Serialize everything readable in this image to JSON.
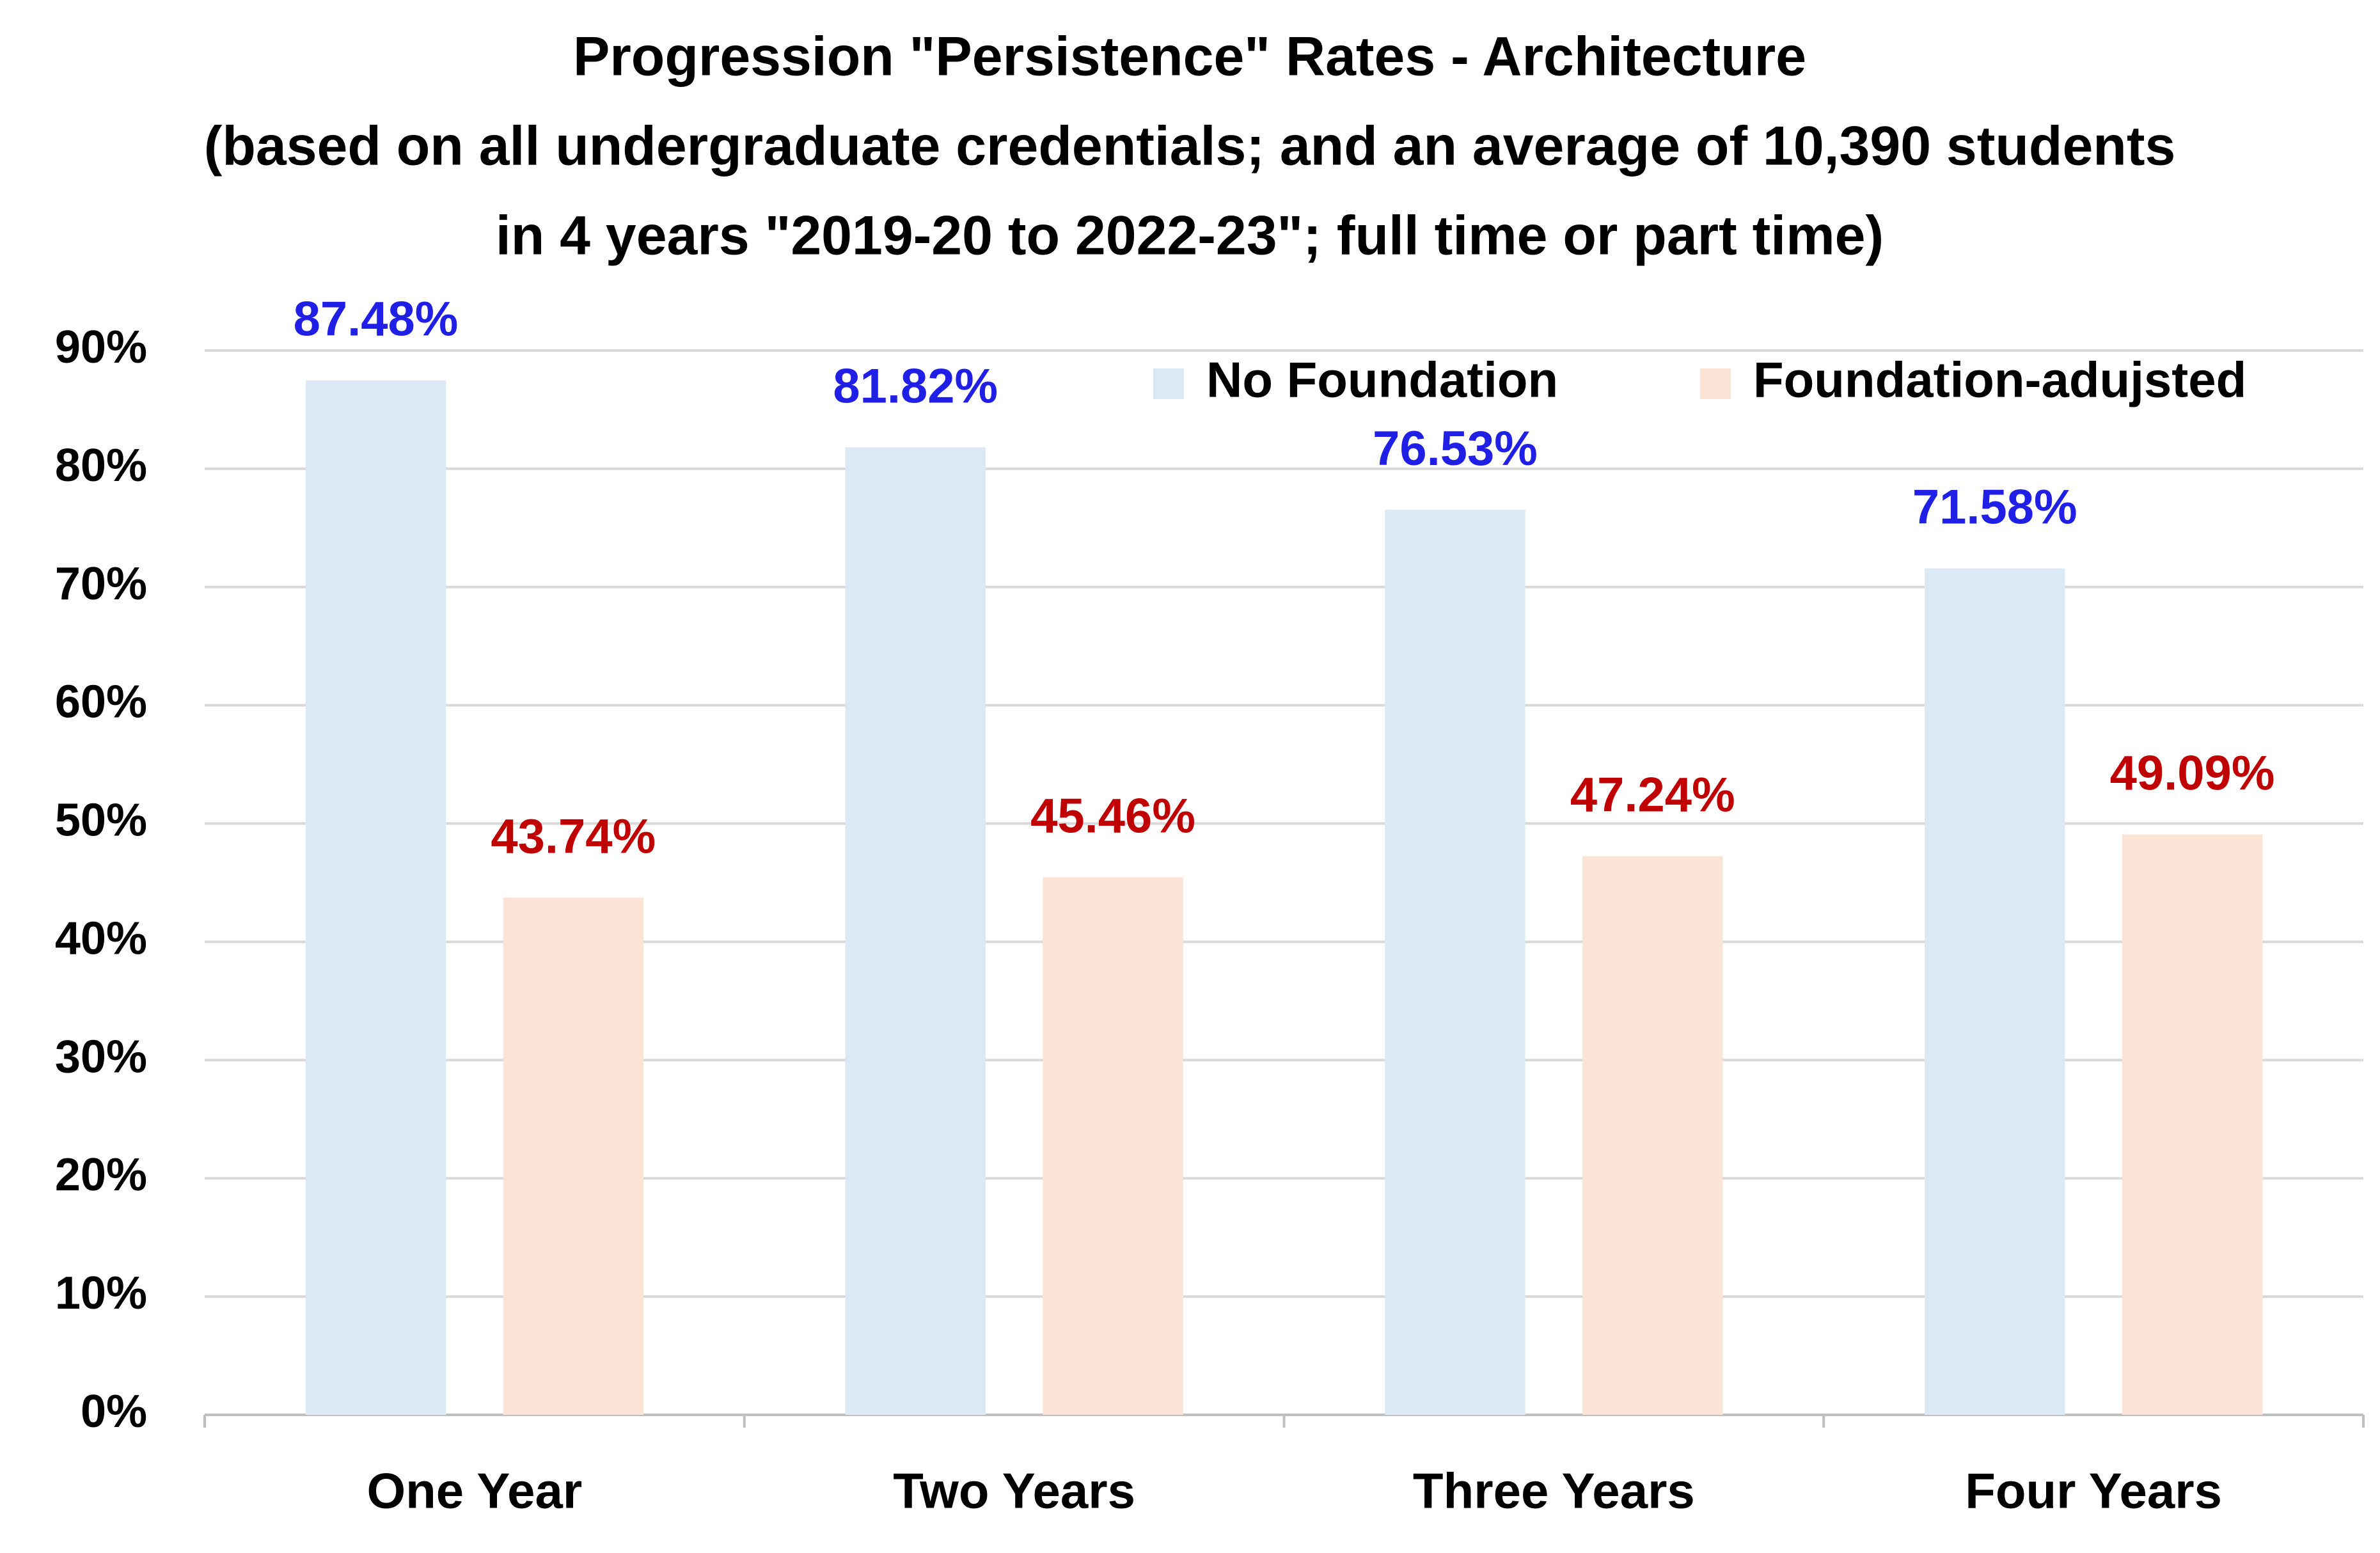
{
  "chart_data": {
    "type": "bar",
    "title": [
      "Progression \"Persistence\" Rates - Architecture",
      "(based on all undergraduate credentials; and an average of 10,390 students",
      "in 4 years \"2019-20 to 2022-23\"; full time or part time)"
    ],
    "categories": [
      "One Year",
      "Two Years",
      "Three Years",
      "Four Years"
    ],
    "series": [
      {
        "name": "No Foundation",
        "color": "#dde8f5",
        "label_color": "#1f1fe6",
        "values": [
          87.48,
          81.82,
          76.53,
          71.58
        ],
        "value_labels": [
          "87.48%",
          "81.82%",
          "76.53%",
          "71.58%"
        ]
      },
      {
        "name": "Foundation-adujsted",
        "color": "#fbe3d5",
        "label_color": "#c00000",
        "values": [
          43.74,
          45.46,
          47.24,
          49.09
        ],
        "value_labels": [
          "43.74%",
          "45.46%",
          "47.24%",
          "49.09%"
        ]
      }
    ],
    "ylim": [
      0,
      90
    ],
    "yticks": [
      {
        "value": 0,
        "label": "0%"
      },
      {
        "value": 10,
        "label": "10%"
      },
      {
        "value": 20,
        "label": "20%"
      },
      {
        "value": 30,
        "label": "30%"
      },
      {
        "value": 40,
        "label": "40%"
      },
      {
        "value": 50,
        "label": "50%"
      },
      {
        "value": 60,
        "label": "60%"
      },
      {
        "value": 70,
        "label": "70%"
      },
      {
        "value": 80,
        "label": "80%"
      },
      {
        "value": 90,
        "label": "90%"
      }
    ],
    "grid": true,
    "legend": "upper right"
  }
}
